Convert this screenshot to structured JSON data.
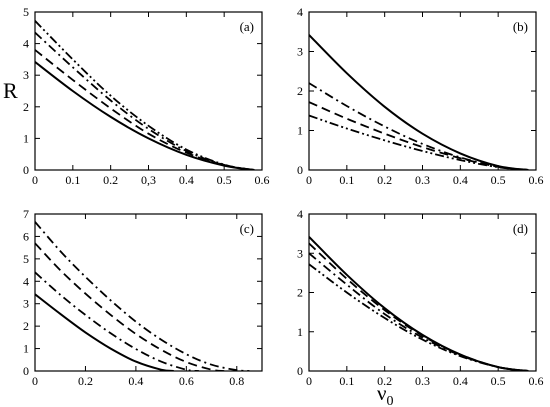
{
  "figure": {
    "ylabel": "R",
    "xlabel": "ν",
    "xlabel_sub": "0"
  },
  "chart_data": [
    {
      "type": "line",
      "panel_label": "(a)",
      "xlim": [
        0,
        0.6
      ],
      "ylim": [
        0,
        5
      ],
      "xticks": [
        "0",
        "0.1",
        "0.2",
        "0,3",
        "0.4",
        "0.5",
        "0.6"
      ],
      "xtick_values": [
        0,
        0.1,
        0.2,
        0.3,
        0.4,
        0.5,
        0.6
      ],
      "yticks": [
        "0",
        "1",
        "2",
        "3",
        "4",
        "5"
      ],
      "ytick_values": [
        0,
        1,
        2,
        3,
        4,
        5
      ],
      "series": [
        {
          "style": "solid",
          "x": [
            0,
            0.1,
            0.2,
            0.3,
            0.4,
            0.5,
            0.58
          ],
          "y": [
            3.42,
            2.5,
            1.68,
            1.0,
            0.48,
            0.14,
            0
          ]
        },
        {
          "style": "dashed",
          "x": [
            0,
            0.1,
            0.2,
            0.3,
            0.4,
            0.5,
            0.58
          ],
          "y": [
            3.8,
            2.85,
            1.95,
            1.15,
            0.55,
            0.15,
            0
          ]
        },
        {
          "style": "dashdot",
          "x": [
            0,
            0.1,
            0.2,
            0.3,
            0.4,
            0.5,
            0.58
          ],
          "y": [
            4.35,
            3.25,
            2.2,
            1.3,
            0.6,
            0.16,
            0
          ]
        },
        {
          "style": "dashdotdot",
          "x": [
            0,
            0.1,
            0.2,
            0.3,
            0.4,
            0.5,
            0.58
          ],
          "y": [
            4.72,
            3.5,
            2.35,
            1.4,
            0.65,
            0.17,
            0
          ]
        }
      ]
    },
    {
      "type": "line",
      "panel_label": "(b)",
      "xlim": [
        0,
        0.6
      ],
      "ylim": [
        0,
        4
      ],
      "xticks": [
        "0",
        "0.1",
        "0.2",
        "0.3",
        "0.4",
        "0.5",
        "0.6"
      ],
      "xtick_values": [
        0,
        0.1,
        0.2,
        0.3,
        0.4,
        0.5,
        0.6
      ],
      "yticks": [
        "0",
        "1",
        "2",
        "3",
        "4"
      ],
      "ytick_values": [
        0,
        1,
        2,
        3,
        4
      ],
      "series": [
        {
          "style": "solid",
          "x": [
            0,
            0.1,
            0.2,
            0.3,
            0.4,
            0.5,
            0.58
          ],
          "y": [
            3.42,
            2.45,
            1.6,
            0.92,
            0.42,
            0.1,
            0
          ]
        },
        {
          "style": "dashdot",
          "x": [
            0,
            0.1,
            0.2,
            0.3,
            0.4,
            0.5,
            0.58
          ],
          "y": [
            2.2,
            1.62,
            1.1,
            0.66,
            0.32,
            0.08,
            0
          ]
        },
        {
          "style": "dashed",
          "x": [
            0,
            0.1,
            0.2,
            0.3,
            0.4,
            0.5,
            0.58
          ],
          "y": [
            1.72,
            1.3,
            0.92,
            0.58,
            0.3,
            0.08,
            0
          ]
        },
        {
          "style": "dashdotdot",
          "x": [
            0,
            0.1,
            0.2,
            0.3,
            0.4,
            0.5,
            0.58
          ],
          "y": [
            1.38,
            1.05,
            0.75,
            0.48,
            0.25,
            0.07,
            0
          ]
        }
      ]
    },
    {
      "type": "line",
      "panel_label": "(c)",
      "xlim": [
        0,
        0.9
      ],
      "ylim": [
        0,
        7
      ],
      "xticks": [
        "0",
        "0.2",
        "0.4",
        "0.6",
        "0.8"
      ],
      "xtick_values": [
        0,
        0.2,
        0.4,
        0.6,
        0.8
      ],
      "yticks": [
        "0",
        "1",
        "2",
        "3",
        "4",
        "5",
        "6",
        "7"
      ],
      "ytick_values": [
        0,
        1,
        2,
        3,
        4,
        5,
        6,
        7
      ],
      "series": [
        {
          "style": "solid",
          "x": [
            0,
            0.1,
            0.2,
            0.3,
            0.4,
            0.5,
            0.55
          ],
          "y": [
            3.42,
            2.55,
            1.72,
            1.0,
            0.42,
            0.06,
            0
          ]
        },
        {
          "style": "dashdot",
          "x": [
            0,
            0.1,
            0.2,
            0.3,
            0.4,
            0.5,
            0.6,
            0.65
          ],
          "y": [
            4.4,
            3.4,
            2.5,
            1.68,
            0.98,
            0.42,
            0.06,
            0
          ]
        },
        {
          "style": "dashed",
          "x": [
            0,
            0.1,
            0.2,
            0.3,
            0.4,
            0.5,
            0.6,
            0.7,
            0.75
          ],
          "y": [
            5.7,
            4.5,
            3.45,
            2.5,
            1.65,
            0.95,
            0.4,
            0.06,
            0
          ]
        },
        {
          "style": "dashdot",
          "x": [
            0,
            0.1,
            0.2,
            0.3,
            0.4,
            0.5,
            0.6,
            0.7,
            0.8,
            0.85
          ],
          "y": [
            6.65,
            5.35,
            4.2,
            3.15,
            2.2,
            1.4,
            0.75,
            0.28,
            0.04,
            0
          ]
        }
      ]
    },
    {
      "type": "line",
      "panel_label": "(d)",
      "xlim": [
        0,
        0.6
      ],
      "ylim": [
        0,
        4
      ],
      "xticks": [
        "0",
        "0.1",
        "0.2",
        "0.3",
        "0.4",
        "0.5",
        "0.6"
      ],
      "xtick_values": [
        0,
        0.1,
        0.2,
        0.3,
        0.4,
        0.5,
        0.6
      ],
      "yticks": [
        "0",
        "1",
        "2",
        "3",
        "4"
      ],
      "ytick_values": [
        0,
        1,
        2,
        3,
        4
      ],
      "series": [
        {
          "style": "solid",
          "x": [
            0,
            0.1,
            0.2,
            0.3,
            0.4,
            0.5,
            0.58
          ],
          "y": [
            3.42,
            2.45,
            1.6,
            0.92,
            0.42,
            0.1,
            0
          ]
        },
        {
          "style": "dashed",
          "x": [
            0,
            0.1,
            0.2,
            0.3,
            0.4,
            0.5,
            0.58
          ],
          "y": [
            3.25,
            2.35,
            1.55,
            0.9,
            0.42,
            0.1,
            0
          ]
        },
        {
          "style": "dashdot",
          "x": [
            0,
            0.1,
            0.2,
            0.3,
            0.4,
            0.5,
            0.58
          ],
          "y": [
            3.0,
            2.2,
            1.45,
            0.85,
            0.4,
            0.1,
            0
          ]
        },
        {
          "style": "dashdotdot",
          "x": [
            0,
            0.1,
            0.2,
            0.3,
            0.4,
            0.5,
            0.58
          ],
          "y": [
            2.72,
            2.0,
            1.35,
            0.8,
            0.38,
            0.1,
            0
          ]
        }
      ]
    }
  ]
}
